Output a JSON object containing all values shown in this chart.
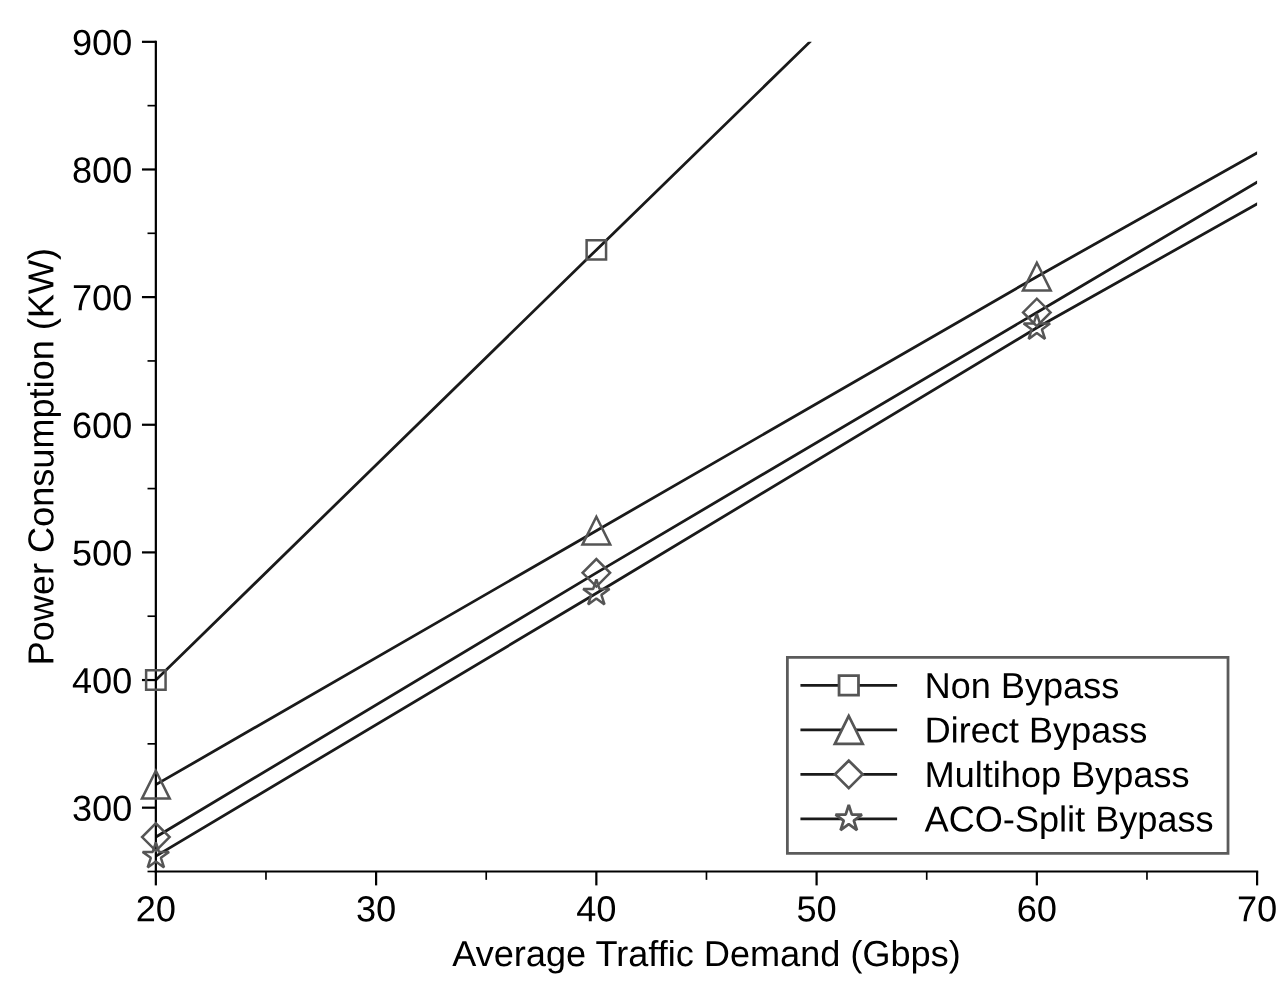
{
  "chart_data": {
    "type": "line",
    "xlabel": "Average Traffic Demand (Gbps)",
    "ylabel": "Power Consumption (KW)",
    "xlim": [
      20,
      70
    ],
    "ylim": [
      250,
      900
    ],
    "xticks": [
      20,
      30,
      40,
      50,
      60,
      70
    ],
    "yticks": [
      300,
      400,
      500,
      600,
      700,
      800,
      900
    ],
    "grid": false,
    "legend": "bottom right",
    "series": [
      {
        "color": "#1a1a1a",
        "marker": "none",
        "x": [
          20,
          40,
          49.7
        ],
        "values": [
          400,
          737,
          900
        ]
      },
      {
        "color": "#1a1a1a",
        "marker": "none",
        "x": [
          20,
          40,
          60,
          70
        ],
        "values": [
          318,
          517,
          716,
          813
        ]
      },
      {
        "color": "#1a1a1a",
        "marker": "none",
        "x": [
          20,
          40,
          60,
          70
        ],
        "values": [
          277,
          484,
          688,
          790
        ]
      },
      {
        "color": "#1a1a1a",
        "marker": "none",
        "x": [
          20,
          40,
          60,
          70
        ],
        "values": [
          262,
          468,
          676,
          773
        ]
      },
      {
        "type": "scatter",
        "name": "Non Bypass",
        "color": "#555555",
        "marker": "square",
        "x": [
          20,
          40
        ],
        "values": [
          400,
          737
        ]
      },
      {
        "type": "scatter",
        "name": "Direct Bypass",
        "color": "#555555",
        "marker": "triangle",
        "x": [
          20,
          40,
          60
        ],
        "values": [
          318,
          517,
          716
        ]
      },
      {
        "type": "scatter",
        "name": "Multihop Bypass",
        "color": "#555555",
        "marker": "diamond",
        "x": [
          20,
          40,
          60
        ],
        "values": [
          277,
          484,
          688
        ]
      },
      {
        "type": "scatter",
        "name": "ACO-Split Bypass",
        "color": "#555555",
        "marker": "star",
        "x": [
          20,
          40,
          60
        ],
        "values": [
          262,
          468,
          676
        ]
      }
    ]
  }
}
